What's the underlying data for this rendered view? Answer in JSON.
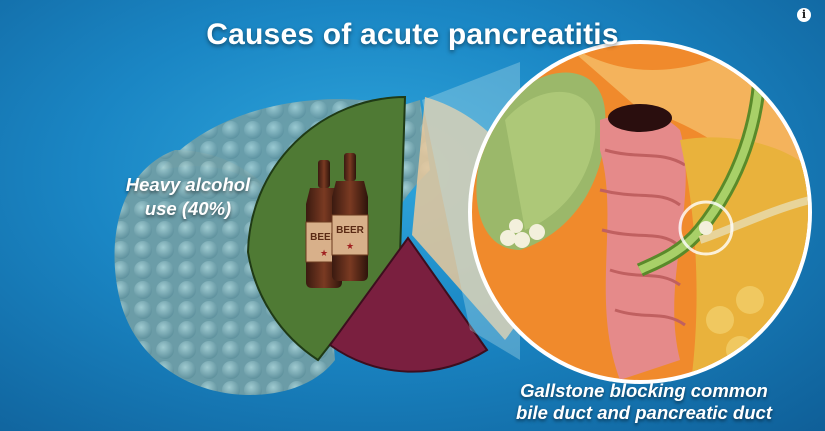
{
  "title": "Causes of acute pancreatitis",
  "info_icon": {
    "glyph": "i",
    "icon": "info-icon"
  },
  "alcohol": {
    "label_line1": "Heavy alcohol",
    "label_line2": "use (40%)",
    "bottle_label": "BEER",
    "color": "#4f7a34"
  },
  "gallstone": {
    "label_line1": "Gallstone blocking common",
    "label_line2": "bile duct and pancreatic duct",
    "color": "#e9c89b"
  },
  "other_slice": {
    "color": "#7a1f3f"
  },
  "colors": {
    "background": "#1a86c4",
    "pancreas": "#7fb0b8",
    "inset_ring": "#ffffff"
  }
}
